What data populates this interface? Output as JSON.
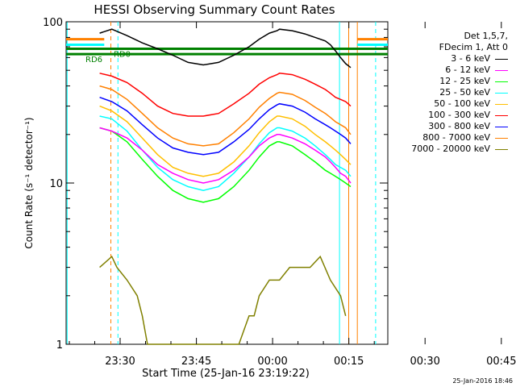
{
  "chart_data": {
    "type": "line",
    "title": "HESSI Observing Summary Count Rates",
    "xlabel": "Start Time (25-Jan-16 23:19:22)",
    "ylabel": "Count Rate (s⁻¹ detector⁻¹)",
    "yscale": "log",
    "ylim": [
      1,
      100
    ],
    "xlim_minutes_from_start": [
      0,
      63.3
    ],
    "x_tick_labels": [
      "23:30",
      "23:45",
      "00:00",
      "00:15",
      "00:30",
      "00:45"
    ],
    "x_tick_minutes": [
      10.63,
      25.63,
      40.63,
      55.63,
      70.63,
      85.63
    ],
    "y_tick_labels": [
      "1",
      "10",
      "100"
    ],
    "y_ticks": [
      1,
      10,
      100
    ],
    "legend_header": [
      "Det 1,5,7,",
      "FDecim 1, Att 0"
    ],
    "legend_placement": "right",
    "series": [
      {
        "name": "3 - 6 keV",
        "color": "#000000",
        "x": [
          6.6,
          9,
          12,
          15,
          18,
          21,
          24,
          27,
          30,
          33,
          36,
          38,
          40,
          41.5,
          42,
          44.5,
          47,
          49,
          51,
          52,
          53,
          54,
          55,
          56
        ],
        "y": [
          85,
          90,
          82,
          74,
          68,
          62,
          56,
          54,
          56,
          62,
          70,
          78,
          85,
          88,
          90,
          88,
          84,
          80,
          76,
          72,
          66,
          60,
          55,
          52
        ]
      },
      {
        "name": "6 - 12 keV",
        "color": "#ff00ff",
        "x": [
          6.6,
          9,
          12,
          15,
          18,
          21,
          24,
          27,
          30,
          33,
          36,
          38,
          40,
          41.5,
          42,
          44.5,
          47,
          49,
          51,
          52,
          53,
          54,
          55,
          56
        ],
        "y": [
          22,
          21,
          19,
          16,
          13,
          11.5,
          10.5,
          10,
          10.5,
          12,
          14.5,
          17,
          19,
          20,
          20,
          19,
          17.5,
          16,
          14.5,
          13.5,
          12.5,
          11.5,
          11,
          10
        ]
      },
      {
        "name": "12 - 25 keV",
        "color": "#00ff00",
        "x": [
          6.6,
          9,
          12,
          15,
          18,
          21,
          24,
          27,
          30,
          33,
          36,
          38,
          40,
          41.5,
          42,
          44.5,
          47,
          49,
          51,
          52,
          53,
          54,
          55,
          56
        ],
        "y": [
          22,
          21,
          18,
          14,
          11,
          9,
          8,
          7.6,
          8,
          9.5,
          12,
          14.5,
          17,
          18,
          18,
          17,
          15,
          13.5,
          12,
          11.5,
          11,
          10.5,
          10,
          9.5
        ]
      },
      {
        "name": "25 - 50 keV",
        "color": "#00ffff",
        "x": [
          6.6,
          9,
          12,
          15,
          18,
          21,
          24,
          27,
          30,
          33,
          36,
          38,
          40,
          41.5,
          42,
          44.5,
          47,
          49,
          51,
          52,
          53,
          54,
          55,
          56
        ],
        "y": [
          26,
          25,
          21,
          16,
          12.5,
          10.5,
          9.5,
          9,
          9.5,
          11.5,
          14.5,
          17.5,
          20.5,
          22,
          22,
          21,
          19,
          17,
          15,
          14,
          13,
          12.5,
          12,
          11
        ]
      },
      {
        "name": "50 - 100 keV",
        "color": "#ffbf00",
        "x": [
          6.6,
          9,
          12,
          15,
          18,
          21,
          24,
          27,
          30,
          33,
          36,
          38,
          40,
          41.5,
          42,
          44.5,
          47,
          49,
          51,
          52,
          53,
          54,
          55,
          56
        ],
        "y": [
          30,
          28,
          24,
          19,
          15,
          12.5,
          11.5,
          11,
          11.5,
          13.5,
          17,
          20.5,
          24,
          26,
          26,
          25,
          22.5,
          20,
          18,
          17,
          16,
          15,
          14,
          13
        ]
      },
      {
        "name": "100 - 300 keV",
        "color": "#ff0000",
        "x": [
          6.6,
          9,
          12,
          15,
          18,
          21,
          24,
          27,
          30,
          33,
          36,
          38,
          40,
          41.5,
          42,
          44.5,
          47,
          49,
          51,
          52,
          53,
          54,
          55,
          56
        ],
        "y": [
          48,
          46,
          42,
          36,
          30,
          27,
          26,
          26,
          27,
          31,
          36,
          41,
          45,
          47,
          48,
          47,
          44,
          41,
          38,
          36,
          34,
          33,
          32,
          30
        ]
      },
      {
        "name": "300 - 800 keV",
        "color": "#0000ff",
        "x": [
          6.6,
          9,
          12,
          15,
          18,
          21,
          24,
          27,
          30,
          33,
          36,
          38,
          40,
          41.5,
          42,
          44.5,
          47,
          49,
          51,
          52,
          53,
          54,
          55,
          56
        ],
        "y": [
          34,
          32,
          28,
          23,
          19,
          16.5,
          15.5,
          15,
          15.5,
          18,
          21.5,
          25,
          28.5,
          30.5,
          31,
          30,
          27.5,
          25,
          23,
          22,
          21,
          20,
          19,
          17.5
        ]
      },
      {
        "name": "800 - 7000 keV",
        "color": "#ff8000",
        "x": [
          6.6,
          9,
          12,
          15,
          18,
          21,
          24,
          27,
          30,
          33,
          36,
          38,
          40,
          41.5,
          42,
          44.5,
          47,
          49,
          51,
          52,
          53,
          54,
          55,
          56
        ],
        "y": [
          40,
          38,
          33,
          27,
          22,
          19,
          17.5,
          17,
          17.5,
          20.5,
          25,
          29.5,
          33.5,
          36,
          36.5,
          35.5,
          32.5,
          29.5,
          27,
          25.5,
          24,
          23,
          22,
          20
        ]
      },
      {
        "name": "7000 - 20000 keV",
        "color": "#808000",
        "x": [
          6.6,
          9,
          10,
          12,
          14,
          15,
          16,
          18,
          20,
          22,
          24,
          26,
          28,
          30,
          32,
          34,
          36,
          37,
          38,
          40,
          42,
          44,
          46,
          48,
          50,
          52,
          54,
          55
        ],
        "y": [
          3,
          3.5,
          3,
          2.5,
          2,
          1.5,
          1,
          1,
          1,
          1,
          1,
          1,
          1,
          1,
          1,
          1,
          1.5,
          1.5,
          2,
          2.5,
          2.5,
          3,
          3,
          3,
          3.5,
          2.5,
          2,
          1.5
        ]
      }
    ],
    "bars": [
      {
        "label": "RD6",
        "color": "#008000",
        "y": 63
      },
      {
        "label": "RD0",
        "color": "#008000",
        "y": 68
      }
    ],
    "legend_order": [
      "3 - 6 keV",
      "6 - 12 keV",
      "12 - 25 keV",
      "25 - 50 keV",
      "50 - 100 keV",
      "100 - 300 keV",
      "300 - 800 keV",
      "800 - 7000 keV",
      "7000 - 20000 keV"
    ],
    "grid": false
  },
  "footer_stamp": "25-Jan-2016 18:46"
}
